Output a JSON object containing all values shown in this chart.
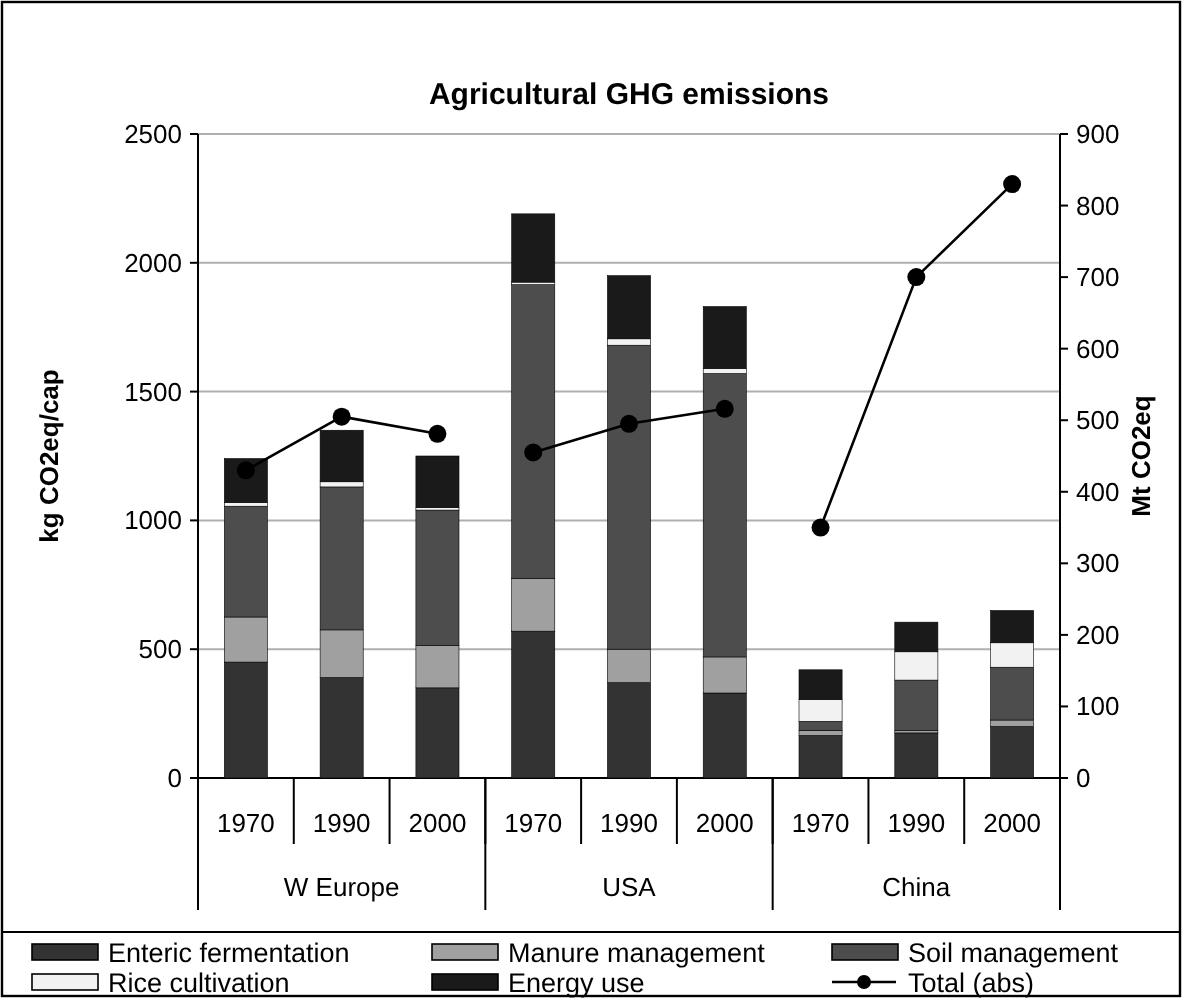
{
  "chart_data": {
    "type": "bar",
    "title": "Agricultural GHG emissions",
    "ylabel": "kg CO2eq/cap",
    "y2label": "Mt CO2eq",
    "categories": [
      "1970",
      "1990",
      "2000",
      "1970",
      "1990",
      "2000",
      "1970",
      "1990",
      "2000"
    ],
    "annotations": [
      "W Europe",
      "USA",
      "China"
    ],
    "stacked": true,
    "series": [
      {
        "name": "Enteric fermentation",
        "color": "#333333",
        "values": [
          450,
          390,
          350,
          570,
          370,
          330,
          165,
          175,
          200
        ]
      },
      {
        "name": "Manure management",
        "color": "#a0a0a0",
        "values": [
          175,
          185,
          165,
          205,
          130,
          140,
          20,
          10,
          25
        ]
      },
      {
        "name": "Soil management",
        "color": "#4d4d4d",
        "values": [
          430,
          555,
          525,
          1140,
          1180,
          1100,
          35,
          195,
          205
        ]
      },
      {
        "name": "Rice cultivation",
        "color": "#f2f2f2",
        "values": [
          15,
          20,
          10,
          10,
          25,
          20,
          85,
          110,
          95
        ]
      },
      {
        "name": "Energy use",
        "color": "#1a1a1a",
        "values": [
          170,
          200,
          200,
          265,
          245,
          240,
          115,
          115,
          125
        ]
      },
      {
        "name": "Total (abs)",
        "type": "line",
        "axis": "y2",
        "color": "#000000",
        "marker": "circle",
        "values": [
          430,
          505,
          481,
          null,
          null,
          null,
          null,
          null,
          null
        ]
      },
      {
        "type": "line",
        "axis": "y2",
        "color": "#000000",
        "marker": "circle",
        "values": [
          null,
          null,
          null,
          455,
          495,
          516,
          null,
          null,
          null
        ]
      },
      {
        "type": "line",
        "axis": "y2",
        "color": "#000000",
        "marker": "circle",
        "values": [
          null,
          null,
          null,
          null,
          null,
          null,
          350,
          700,
          830
        ]
      }
    ],
    "ylim": [
      0,
      2500
    ],
    "yticks": [
      0,
      500,
      1000,
      1500,
      2000,
      2500
    ],
    "y2lim": [
      0,
      900
    ],
    "y2ticks": [
      0,
      100,
      200,
      300,
      400,
      500,
      600,
      700,
      800,
      900
    ],
    "grid": "y",
    "legend": "bottom"
  }
}
